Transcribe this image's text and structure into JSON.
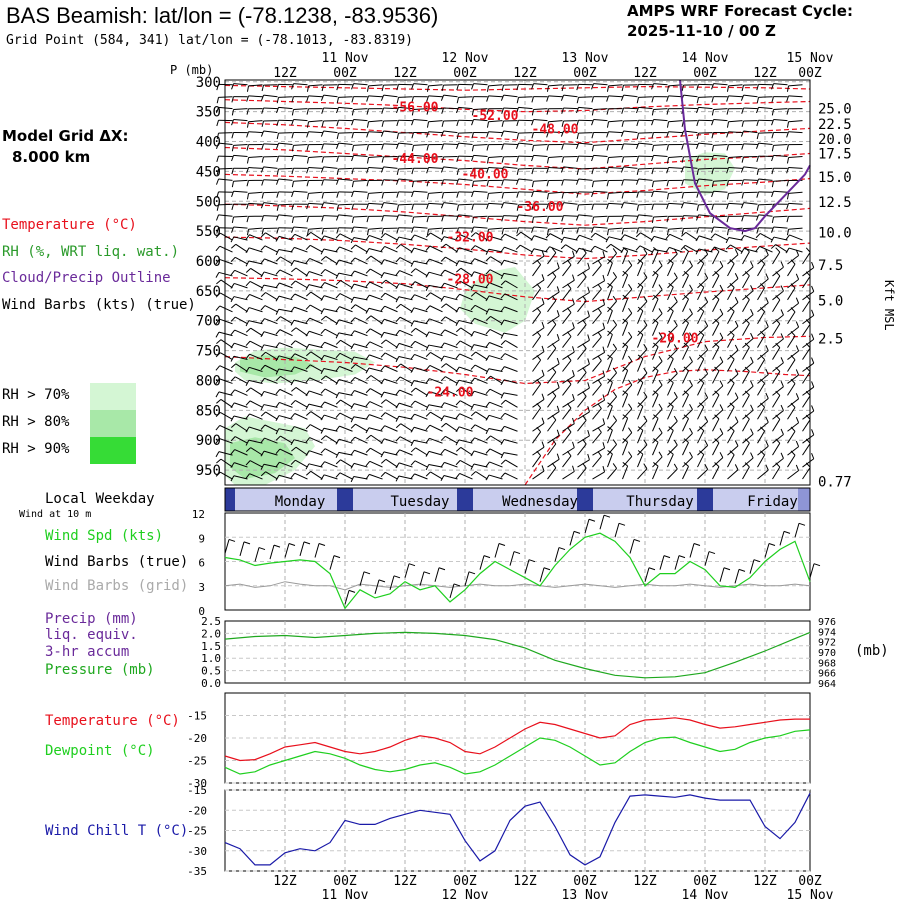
{
  "header": {
    "title": "BAS Beamish:  lat/lon = (-78.1238, -83.9536)",
    "grid_point": "Grid Point (584, 341) lat/lon = (-78.1013, -83.8319)",
    "cycle_line1": "AMPS WRF Forecast Cycle:",
    "cycle_line2": "2025-11-10 / 00  Z",
    "model_grid_line1": "Model Grid ΔX:",
    "model_grid_line2": "8.000 km"
  },
  "legend_top": {
    "temperature": "Temperature (°C)",
    "rh": "RH (%, WRT liq. wat.)",
    "cloud": "Cloud/Precip Outline",
    "wind": "Wind Barbs (kts) (true)",
    "rh70": "RH > 70%",
    "rh80": "RH > 80%",
    "rh90": "RH > 90%"
  },
  "legend_wind": {
    "local_weekday": "Local Weekday",
    "wind_at": "Wind at 10 m",
    "spd": "Wind Spd (kts)",
    "barbs_true": "Wind Barbs (true)",
    "barbs_grid": "Wind Barbs (grid)"
  },
  "legend_precip": {
    "l1": "Precip (mm)",
    "l2": "liq. equiv.",
    "l3": "3-hr accum",
    "l4": "Pressure (mb)",
    "unit": "(mb)"
  },
  "legend_temp": {
    "temp": "Temperature (°C)",
    "dew": "Dewpoint (°C)"
  },
  "legend_chill": {
    "chill": "Wind Chill T (°C)"
  },
  "colors": {
    "temperature": "#e8101c",
    "rh": "#2a9a2a",
    "cloud": "#6a2a9a",
    "wind": "#000000",
    "wind_spd": "#1fcf1f",
    "wind_grid": "#9a9a9a",
    "precip": "#6a2a9a",
    "pressure": "#1fa81f",
    "dewpoint": "#1fcf1f",
    "wind_chill": "#1a1aa8",
    "rh70": "#d4f6d4",
    "rh80": "#a8e8a8",
    "rh90": "#36dc36",
    "weekday_band": "#2c3a9a"
  },
  "chart_data": [
    {
      "type": "line",
      "panel": "time-height cross section",
      "xlabel": "",
      "ylabel_left": "P (mb)",
      "ylabel_right": "Kft MSL",
      "x_top_labels": [
        "12Z",
        "00Z",
        "12Z",
        "00Z",
        "12Z",
        "00Z",
        "12Z",
        "00Z",
        "12Z",
        "00Z"
      ],
      "x_top_dates": [
        "11 Nov",
        "12 Nov",
        "13 Nov",
        "14 Nov",
        "15 Nov"
      ],
      "x_hours": [
        0,
        12,
        24,
        36,
        48,
        60,
        72,
        84,
        96,
        108,
        120
      ],
      "xlim_hours": [
        0,
        117
      ],
      "p_ticks": [
        300,
        350,
        400,
        450,
        500,
        550,
        600,
        650,
        700,
        750,
        800,
        850,
        900,
        950
      ],
      "kft_labels": [
        "25.0",
        "22.5",
        "20.0",
        "17.5",
        "15.0",
        "12.5",
        "10.0",
        "7.5",
        "5.0",
        "2.5",
        "0.77"
      ],
      "kft_at_p": [
        345,
        371,
        396,
        420,
        459,
        501,
        552,
        607,
        666,
        730,
        969
      ],
      "temperature_labels": [
        {
          "text": "-56.00",
          "hour": 38,
          "p": 343
        },
        {
          "text": "-52.00",
          "hour": 54,
          "p": 357
        },
        {
          "text": "-48.00",
          "hour": 66,
          "p": 380
        },
        {
          "text": "-44.00",
          "hour": 38,
          "p": 429
        },
        {
          "text": "-40.00",
          "hour": 52,
          "p": 455
        },
        {
          "text": "-36.00",
          "hour": 63,
          "p": 510
        },
        {
          "text": "-32.00",
          "hour": 49,
          "p": 561
        },
        {
          "text": "-28.00",
          "hour": 49,
          "p": 631
        },
        {
          "text": "-20.00",
          "hour": 90,
          "p": 730
        },
        {
          "text": "-24.00",
          "hour": 45,
          "p": 820
        }
      ],
      "temperature_contours": [
        {
          "hour": [
            0,
            12,
            24,
            36,
            48,
            60,
            72,
            84,
            96,
            108,
            117
          ],
          "p": [
            306,
            308,
            310,
            312,
            314,
            312,
            310,
            308,
            309,
            310,
            312
          ]
        },
        {
          "hour": [
            0,
            12,
            24,
            36,
            48,
            60,
            72,
            84,
            96,
            108,
            117
          ],
          "p": [
            330,
            333,
            336,
            340,
            346,
            350,
            348,
            342,
            338,
            335,
            333
          ]
        },
        {
          "hour": [
            0,
            12,
            24,
            36,
            48,
            60,
            72,
            84,
            96,
            108,
            117
          ],
          "p": [
            368,
            372,
            378,
            385,
            392,
            398,
            402,
            395,
            388,
            382,
            378
          ]
        },
        {
          "hour": [
            0,
            12,
            24,
            36,
            48,
            60,
            72,
            84,
            96,
            108,
            117
          ],
          "p": [
            410,
            414,
            420,
            426,
            432,
            440,
            446,
            438,
            430,
            425,
            420
          ]
        },
        {
          "hour": [
            0,
            12,
            24,
            36,
            48,
            60,
            72,
            84,
            96,
            108,
            117
          ],
          "p": [
            455,
            458,
            462,
            466,
            472,
            480,
            488,
            482,
            474,
            468,
            462
          ]
        },
        {
          "hour": [
            0,
            12,
            24,
            36,
            48,
            60,
            72,
            84,
            96,
            108,
            117
          ],
          "p": [
            505,
            508,
            512,
            518,
            526,
            534,
            540,
            534,
            526,
            518,
            512
          ]
        },
        {
          "hour": [
            0,
            12,
            24,
            36,
            48,
            60,
            72,
            84,
            96,
            108,
            117
          ],
          "p": [
            560,
            562,
            566,
            572,
            580,
            590,
            596,
            590,
            582,
            575,
            570
          ]
        },
        {
          "hour": [
            0,
            12,
            24,
            36,
            48,
            60,
            72,
            84,
            96,
            108,
            117
          ],
          "p": [
            628,
            630,
            633,
            638,
            648,
            660,
            668,
            660,
            652,
            645,
            640
          ]
        },
        {
          "hour": [
            0,
            12,
            24,
            36,
            48,
            60,
            72,
            84,
            96,
            108,
            117
          ],
          "p": [
            760,
            765,
            770,
            778,
            790,
            805,
            800,
            760,
            735,
            728,
            726
          ]
        },
        {
          "hour": [
            60,
            66,
            72,
            78,
            84,
            90,
            96,
            104,
            112,
            117
          ],
          "p": [
            975,
            900,
            850,
            815,
            795,
            785,
            782,
            785,
            790,
            792
          ]
        }
      ],
      "rh_regions": [
        {
          "level": 70,
          "hour": [
            2,
            6,
            12,
            18,
            26,
            30,
            26,
            18,
            10,
            4,
            2
          ],
          "p": [
            770,
            750,
            745,
            748,
            752,
            770,
            790,
            800,
            805,
            800,
            785
          ]
        },
        {
          "level": 70,
          "hour": [
            0,
            4,
            10,
            16,
            18,
            14,
            8,
            2,
            0
          ],
          "p": [
            880,
            860,
            870,
            880,
            910,
            950,
            975,
            975,
            960
          ]
        },
        {
          "level": 70,
          "hour": [
            48,
            52,
            58,
            62,
            60,
            56,
            50,
            47,
            48
          ],
          "p": [
            650,
            620,
            610,
            650,
            700,
            720,
            705,
            680,
            650
          ]
        },
        {
          "level": 70,
          "hour": [
            92,
            96,
            100,
            102,
            100,
            96,
            92,
            92
          ],
          "p": [
            430,
            418,
            420,
            445,
            480,
            490,
            470,
            430
          ]
        }
      ],
      "cloud_outline": {
        "hour": [
          91,
          92,
          94,
          97,
          101,
          104,
          106,
          108,
          112,
          116,
          117
        ],
        "p": [
          297,
          380,
          470,
          520,
          545,
          550,
          545,
          525,
          490,
          455,
          440
        ]
      }
    },
    {
      "type": "line",
      "panel": "10 m wind speed",
      "weekdays": [
        "Monday",
        "Tuesday",
        "Wednesday",
        "Thursday",
        "Friday"
      ],
      "weekday_hours": [
        [
          6,
          24
        ],
        [
          30,
          48
        ],
        [
          54,
          72
        ],
        [
          78,
          96
        ],
        [
          102,
          117
        ]
      ],
      "ylim": [
        0,
        12
      ],
      "yticks": [
        0,
        3,
        6,
        9,
        12
      ],
      "hour": [
        0,
        3,
        6,
        9,
        12,
        15,
        18,
        21,
        24,
        27,
        30,
        33,
        36,
        39,
        42,
        45,
        48,
        51,
        54,
        57,
        60,
        63,
        66,
        69,
        72,
        75,
        78,
        81,
        84,
        87,
        90,
        93,
        96,
        99,
        102,
        105,
        108,
        111,
        114,
        117
      ],
      "wind_spd": [
        6.5,
        6.2,
        5.5,
        5.8,
        6.0,
        6.2,
        6.0,
        4.5,
        0.2,
        2.5,
        1.5,
        2.0,
        3.5,
        2.5,
        3.0,
        1.0,
        2.5,
        4.5,
        6.0,
        5.0,
        4.0,
        3.0,
        5.5,
        7.5,
        9.0,
        9.5,
        8.5,
        6.5,
        3.0,
        4.5,
        4.5,
        6.0,
        5.0,
        3.0,
        2.8,
        4.0,
        6.0,
        7.5,
        8.5,
        3.5
      ],
      "wind_grid": [
        3.0,
        3.2,
        2.8,
        3.0,
        3.5,
        3.2,
        3.0,
        3.0,
        2.5,
        3.2,
        3.0,
        2.8,
        3.0,
        3.2,
        3.0,
        2.8,
        3.0,
        3.2,
        3.0,
        3.0,
        3.2,
        3.0,
        2.8,
        3.0,
        3.2,
        3.0,
        2.8,
        3.0,
        3.2,
        3.0,
        3.0,
        3.2,
        3.0,
        2.8,
        3.0,
        3.2,
        3.0,
        3.0,
        3.2,
        3.0
      ]
    },
    {
      "type": "line",
      "panel": "precip and pressure",
      "ylim_left": [
        0,
        2.5
      ],
      "yticks_left": [
        "0.0",
        "0.5",
        "1.0",
        "1.5",
        "2.0",
        "2.5"
      ],
      "ylim_right": [
        964,
        976
      ],
      "yticks_right": [
        "964",
        "966",
        "968",
        "970",
        "972",
        "974",
        "976"
      ],
      "hour": [
        0,
        6,
        12,
        18,
        24,
        30,
        36,
        42,
        48,
        54,
        60,
        66,
        72,
        78,
        84,
        90,
        96,
        102,
        108,
        114,
        117
      ],
      "pressure": [
        972.5,
        973.0,
        973.2,
        972.8,
        973.2,
        973.6,
        973.8,
        973.6,
        973.2,
        972.4,
        970.8,
        968.4,
        966.8,
        965.5,
        965.0,
        965.2,
        966.0,
        968.0,
        970.2,
        972.6,
        973.8
      ],
      "precip": []
    },
    {
      "type": "line",
      "panel": "temperature and dewpoint",
      "ylim": [
        -30,
        -10
      ],
      "yticks": [
        "-15",
        "-20",
        "-25",
        "-30"
      ],
      "hour": [
        0,
        3,
        6,
        9,
        12,
        15,
        18,
        21,
        24,
        27,
        30,
        33,
        36,
        39,
        42,
        45,
        48,
        51,
        54,
        57,
        60,
        63,
        66,
        69,
        72,
        75,
        78,
        81,
        84,
        87,
        90,
        93,
        96,
        99,
        102,
        105,
        108,
        111,
        114,
        117
      ],
      "temperature": [
        -24,
        -25,
        -24.8,
        -23.5,
        -22,
        -21.5,
        -21,
        -22,
        -23,
        -23.5,
        -23,
        -22,
        -20.5,
        -19.5,
        -20,
        -21,
        -23,
        -23.5,
        -22,
        -20,
        -18,
        -16.5,
        -17,
        -18,
        -19,
        -20,
        -19.5,
        -17,
        -16,
        -15.8,
        -15.5,
        -16,
        -17,
        -17.8,
        -17.5,
        -17,
        -16.5,
        -16,
        -15.8,
        -15.8
      ],
      "dewpoint": [
        -26.5,
        -28,
        -27.5,
        -26,
        -25,
        -24,
        -23,
        -23.5,
        -24.5,
        -26,
        -27,
        -27.5,
        -27,
        -26,
        -25.5,
        -26.5,
        -28,
        -27.5,
        -26,
        -24,
        -22,
        -20,
        -20.5,
        -22,
        -24,
        -26,
        -25.5,
        -23,
        -21,
        -20,
        -19.8,
        -21,
        -22,
        -23,
        -22.5,
        -21,
        -20,
        -19.5,
        -18.5,
        -18.2
      ]
    },
    {
      "type": "line",
      "panel": "wind chill",
      "ylim": [
        -35,
        -15
      ],
      "yticks": [
        "-15",
        "-20",
        "-25",
        "-30",
        "-35"
      ],
      "hour": [
        0,
        3,
        6,
        9,
        12,
        15,
        18,
        21,
        24,
        27,
        30,
        33,
        36,
        39,
        42,
        45,
        48,
        51,
        54,
        57,
        60,
        63,
        66,
        69,
        72,
        75,
        78,
        81,
        84,
        87,
        90,
        93,
        96,
        99,
        102,
        105,
        108,
        111,
        114,
        117
      ],
      "wind_chill": [
        -28,
        -29.5,
        -33.5,
        -33.5,
        -30.5,
        -29.5,
        -30,
        -28,
        -22.5,
        -23.5,
        -23.5,
        -22,
        -21,
        -20,
        -20.5,
        -21,
        -27.5,
        -32.5,
        -30,
        -22.5,
        -19,
        -18,
        -24,
        -31,
        -33.5,
        -31.5,
        -23,
        -16.5,
        -16.2,
        -16.5,
        -16.8,
        -16.2,
        -17,
        -17.5,
        -17.5,
        -17.5,
        -24,
        -27,
        -23,
        -15.8
      ],
      "x_bottom_labels": [
        "12Z",
        "00Z",
        "12Z",
        "00Z",
        "12Z",
        "00Z",
        "12Z",
        "00Z",
        "12Z",
        "00Z"
      ],
      "x_bottom_dates": [
        "11 Nov",
        "12 Nov",
        "13 Nov",
        "14 Nov",
        "15 Nov"
      ]
    }
  ]
}
